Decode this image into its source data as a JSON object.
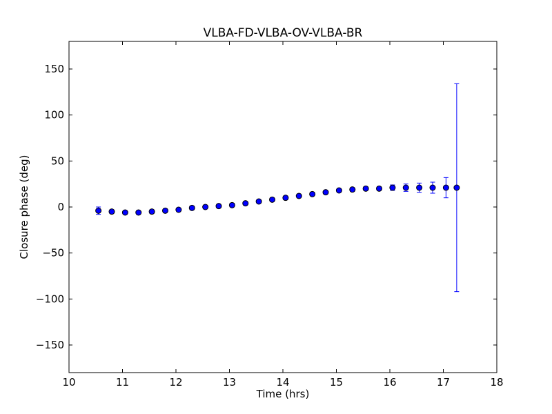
{
  "chart_data": {
    "type": "scatter",
    "title": "VLBA-FD-VLBA-OV-VLBA-BR",
    "xlabel": "Time (hrs)",
    "ylabel": "Closure phase (deg)",
    "xlim": [
      10,
      18
    ],
    "ylim": [
      -180,
      180
    ],
    "xticks": [
      10,
      11,
      12,
      13,
      14,
      15,
      16,
      17,
      18
    ],
    "xtick_labels": [
      "10",
      "11",
      "12",
      "13",
      "14",
      "15",
      "16",
      "17",
      "18"
    ],
    "yticks": [
      -150,
      -100,
      -50,
      0,
      50,
      100,
      150
    ],
    "ytick_labels": [
      "−150",
      "−100",
      "−50",
      "0",
      "50",
      "100",
      "150"
    ],
    "grid": false,
    "legend": "none",
    "marker_color": "#0000ff",
    "error_bar_color": "#0000ff",
    "series": [
      {
        "x": [
          10.55,
          10.8,
          11.05,
          11.3,
          11.55,
          11.8,
          12.05,
          12.3,
          12.55,
          12.8,
          13.05,
          13.3,
          13.55,
          13.8,
          14.05,
          14.3,
          14.55,
          14.8,
          15.05,
          15.3,
          15.55,
          15.8,
          16.05,
          16.3,
          16.55,
          16.8,
          17.05,
          17.25
        ],
        "y": [
          -4,
          -5,
          -6,
          -6,
          -5,
          -4,
          -3,
          -1,
          0,
          1,
          2,
          4,
          6,
          8,
          10,
          12,
          14,
          16,
          18,
          19,
          20,
          20,
          21,
          21,
          21,
          21,
          21,
          21
        ],
        "yerr": [
          4,
          2,
          2,
          2,
          2,
          2,
          2,
          2,
          2,
          2,
          2,
          2,
          2,
          2,
          2,
          2,
          2,
          2,
          2,
          2,
          2,
          2,
          3,
          4,
          5,
          6,
          11,
          113
        ]
      }
    ]
  }
}
